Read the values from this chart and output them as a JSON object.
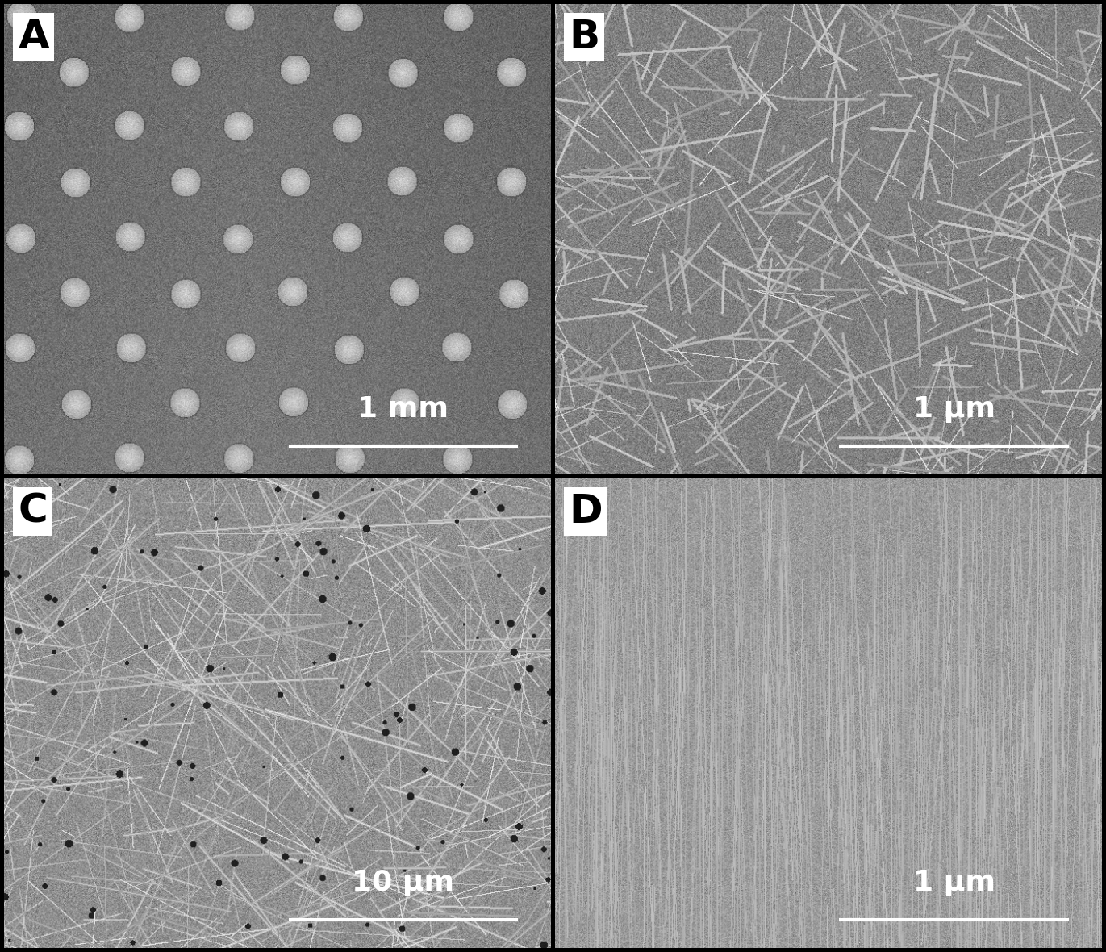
{
  "panels": [
    "A",
    "B",
    "C",
    "D"
  ],
  "scale_labels": [
    "1 mm",
    "1 μm",
    "10 μm",
    "1 μm"
  ],
  "figsize": [
    13.71,
    11.8
  ],
  "dpi": 100,
  "border_color": "#000000",
  "label_bg": "#ffffff",
  "label_text_color": "#000000",
  "scalebar_color": "#ffffff",
  "scalebar_text_color": "#ffffff",
  "seeds": [
    42,
    123,
    456,
    789
  ]
}
